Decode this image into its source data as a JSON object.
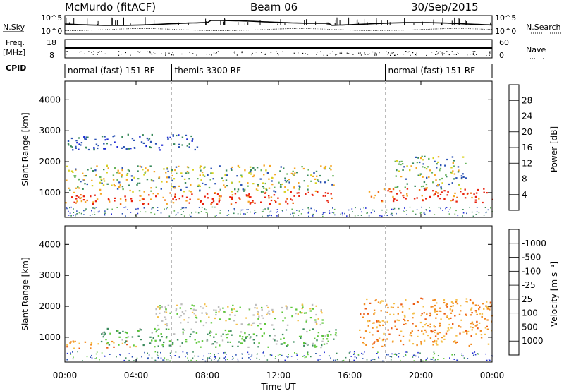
{
  "header": {
    "station": "McMurdo (fitACF)",
    "beam": "Beam 06",
    "date": "30/Sep/2015"
  },
  "top_panels": {
    "nsky_label": "N.Sky",
    "nsky_ticks": [
      "10^5",
      "10^0"
    ],
    "nsearch_label": "N.Search",
    "nsearch_ticks": [
      "10^5",
      "10^0"
    ],
    "freq_label": "Freq.",
    "freq_unit": "[MHz]",
    "freq_ticks": [
      "18",
      "8"
    ],
    "nave_label": "Nave",
    "nave_ticks": [
      "60",
      "0"
    ],
    "cpid_label": "CPID",
    "cpid_segments": [
      {
        "label": "normal (fast) 151 RF",
        "start_h": 0,
        "end_h": 6
      },
      {
        "label": "themis 3300 RF",
        "start_h": 6,
        "end_h": 18
      },
      {
        "label": "normal (fast) 151 RF",
        "start_h": 18,
        "end_h": 24
      }
    ]
  },
  "chart_data": [
    {
      "type": "heatmap",
      "title": "",
      "xlabel": "Time UT",
      "ylabel": "Slant Range [km]",
      "xlim": [
        0,
        24
      ],
      "ylim": [
        200,
        4600
      ],
      "x_ticks": [
        "00:00",
        "04:00",
        "08:00",
        "12:00",
        "16:00",
        "20:00",
        "00:00"
      ],
      "y_ticks": [
        1000,
        2000,
        3000,
        4000
      ],
      "colorbar": {
        "label": "Power [dB]",
        "ticks": [
          "4",
          "8",
          "12",
          "16",
          "20",
          "24",
          "28"
        ],
        "colors": [
          "#1f2bd6",
          "#2a52b4",
          "#3a8a5c",
          "#67b35a",
          "#d8d11e",
          "#f5a623",
          "#ef6b12",
          "#e8220e"
        ]
      },
      "bands": [
        {
          "start_h": 0.0,
          "end_h": 15.2,
          "range_lo": 650,
          "range_hi": 1050,
          "level": "high"
        },
        {
          "start_h": 0.0,
          "end_h": 15.2,
          "range_lo": 1050,
          "range_hi": 1900,
          "level": "medium"
        },
        {
          "start_h": 0.0,
          "end_h": 7.5,
          "range_lo": 2400,
          "range_hi": 2900,
          "level": "low"
        },
        {
          "start_h": 17.0,
          "end_h": 24.0,
          "range_lo": 700,
          "range_hi": 1150,
          "level": "high"
        },
        {
          "start_h": 18.5,
          "end_h": 22.5,
          "range_lo": 1150,
          "range_hi": 2200,
          "level": "medium"
        }
      ]
    },
    {
      "type": "heatmap",
      "title": "",
      "xlabel": "Time UT",
      "ylabel": "Slant Range [km]",
      "xlim": [
        0,
        24
      ],
      "ylim": [
        200,
        4600
      ],
      "x_ticks": [
        "00:00",
        "04:00",
        "08:00",
        "12:00",
        "16:00",
        "20:00",
        "00:00"
      ],
      "y_ticks": [
        1000,
        2000,
        3000,
        4000
      ],
      "colorbar": {
        "label": "Velocity [m s⁻¹]",
        "ticks": [
          "1000",
          "500",
          "100",
          "25",
          "-25",
          "-100",
          "-500",
          "-1000"
        ],
        "colors": [
          "#1f2bd6",
          "#2a52b4",
          "#3a8a5c",
          "#5ec73a",
          "#bdbdbd",
          "#f5c04a",
          "#f28a1e",
          "#ec5a12",
          "#e8220e"
        ]
      },
      "bands": [
        {
          "start_h": 0.0,
          "end_h": 4.0,
          "range_lo": 650,
          "range_hi": 900,
          "level": "negative"
        },
        {
          "start_h": 2.0,
          "end_h": 15.2,
          "range_lo": 700,
          "range_hi": 1300,
          "level": "positive"
        },
        {
          "start_h": 5.0,
          "end_h": 14.5,
          "range_lo": 1400,
          "range_hi": 2100,
          "level": "near-zero"
        },
        {
          "start_h": 16.5,
          "end_h": 24.0,
          "range_lo": 700,
          "range_hi": 2300,
          "level": "negative"
        }
      ]
    }
  ]
}
